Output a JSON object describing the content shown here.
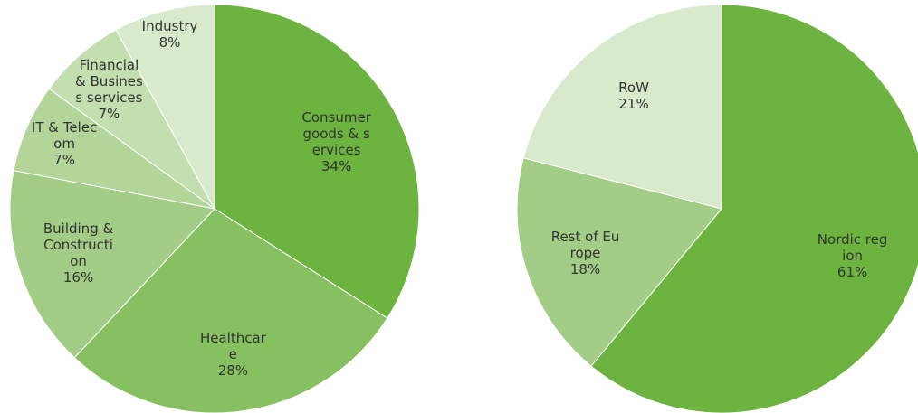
{
  "chart_data": [
    {
      "type": "pie",
      "categories": [
        "Consumer goods & services",
        "Healthcare",
        "Building & Construction",
        "IT & Telecom",
        "Financial & Business services",
        "Industry"
      ],
      "values": [
        34,
        28,
        16,
        7,
        7,
        8
      ],
      "value_labels": [
        "34%",
        "28%",
        "16%",
        "7%",
        "7%",
        "8%"
      ],
      "colors": [
        "#6db33f",
        "#86c060",
        "#a3cd87",
        "#b3d59a",
        "#c3deaf",
        "#d8eacb"
      ]
    },
    {
      "type": "pie",
      "categories": [
        "Nordic region",
        "Rest of Europe",
        "RoW"
      ],
      "values": [
        61,
        18,
        21
      ],
      "value_labels": [
        "61%",
        "18%",
        "21%"
      ],
      "colors": [
        "#6db33f",
        "#a3cd87",
        "#d8eacb"
      ]
    }
  ]
}
